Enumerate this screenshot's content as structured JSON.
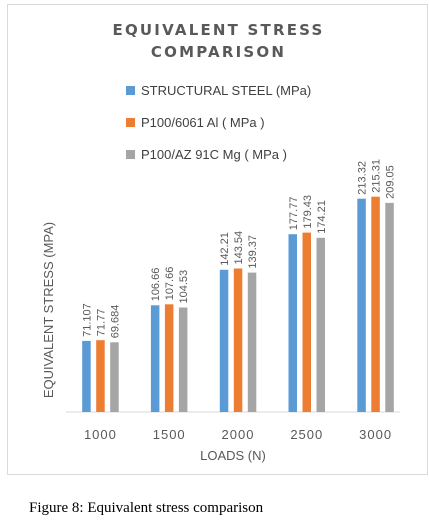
{
  "figure": {
    "caption": "Figure 8: Equivalent stress comparison"
  },
  "chart_data": {
    "type": "bar",
    "title_line1": "EQUIVALENT STRESS",
    "title_line2": "COMPARISON",
    "xlabel": "LOADS (N)",
    "ylabel": "EQUIVALENT STRESS (MPA)",
    "categories": [
      "1000",
      "1500",
      "2000",
      "2500",
      "3000"
    ],
    "ylim": [
      0,
      240
    ],
    "grid": false,
    "legend_position": "top",
    "series": [
      {
        "name": "STRUCTURAL STEEL (MPa)",
        "color": "#5b9bd5",
        "values": [
          71.107,
          106.66,
          142.21,
          177.77,
          213.32
        ],
        "labels": [
          "71.107",
          "106.66",
          "142.21",
          "177.77",
          "213.32"
        ]
      },
      {
        "name": "P100/6061 Al  ( MPa )",
        "color": "#ed7d31",
        "values": [
          71.77,
          107.66,
          143.54,
          179.43,
          215.31
        ],
        "labels": [
          "71.77",
          "107.66",
          "143.54",
          "179.43",
          "215.31"
        ]
      },
      {
        "name": "P100/AZ 91C Mg  ( MPa )",
        "color": "#a5a5a5",
        "values": [
          69.684,
          104.53,
          139.37,
          174.21,
          209.05
        ],
        "labels": [
          "69.684",
          "104.53",
          "139.37",
          "174.21",
          "209.05"
        ]
      }
    ]
  }
}
